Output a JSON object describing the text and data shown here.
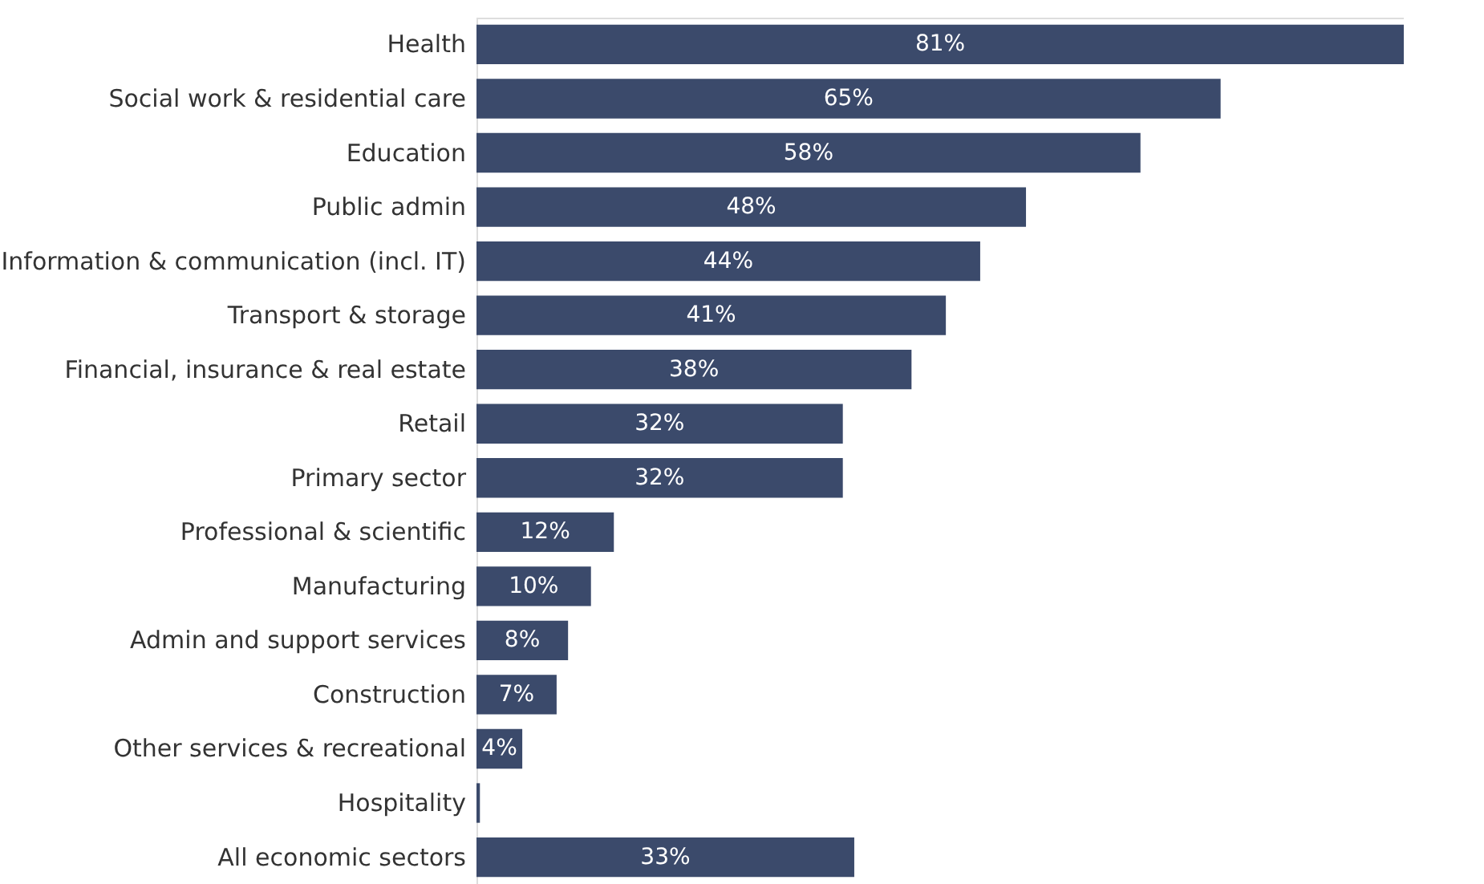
{
  "chart_data": {
    "type": "bar",
    "orientation": "horizontal",
    "categories": [
      "Health",
      "Social work & residential care",
      "Education",
      "Public admin",
      "Information & communication (incl. IT)",
      "Transport & storage",
      "Financial, insurance & real estate",
      "Retail",
      "Primary sector",
      "Professional & scientific",
      "Manufacturing",
      "Admin and support services",
      "Construction",
      "Other services & recreational",
      "Hospitality",
      "All economic sectors"
    ],
    "values": [
      81,
      65,
      58,
      48,
      44,
      41,
      38,
      32,
      32,
      12,
      10,
      8,
      7,
      4,
      0.3,
      33
    ],
    "value_labels": [
      "81%",
      "65%",
      "58%",
      "48%",
      "44%",
      "41%",
      "38%",
      "32%",
      "32%",
      "12%",
      "10%",
      "8%",
      "7%",
      "4%",
      null,
      "33%"
    ],
    "color": "#3b4a6b",
    "xlim": [
      0,
      81
    ],
    "tick_labels": "y"
  }
}
